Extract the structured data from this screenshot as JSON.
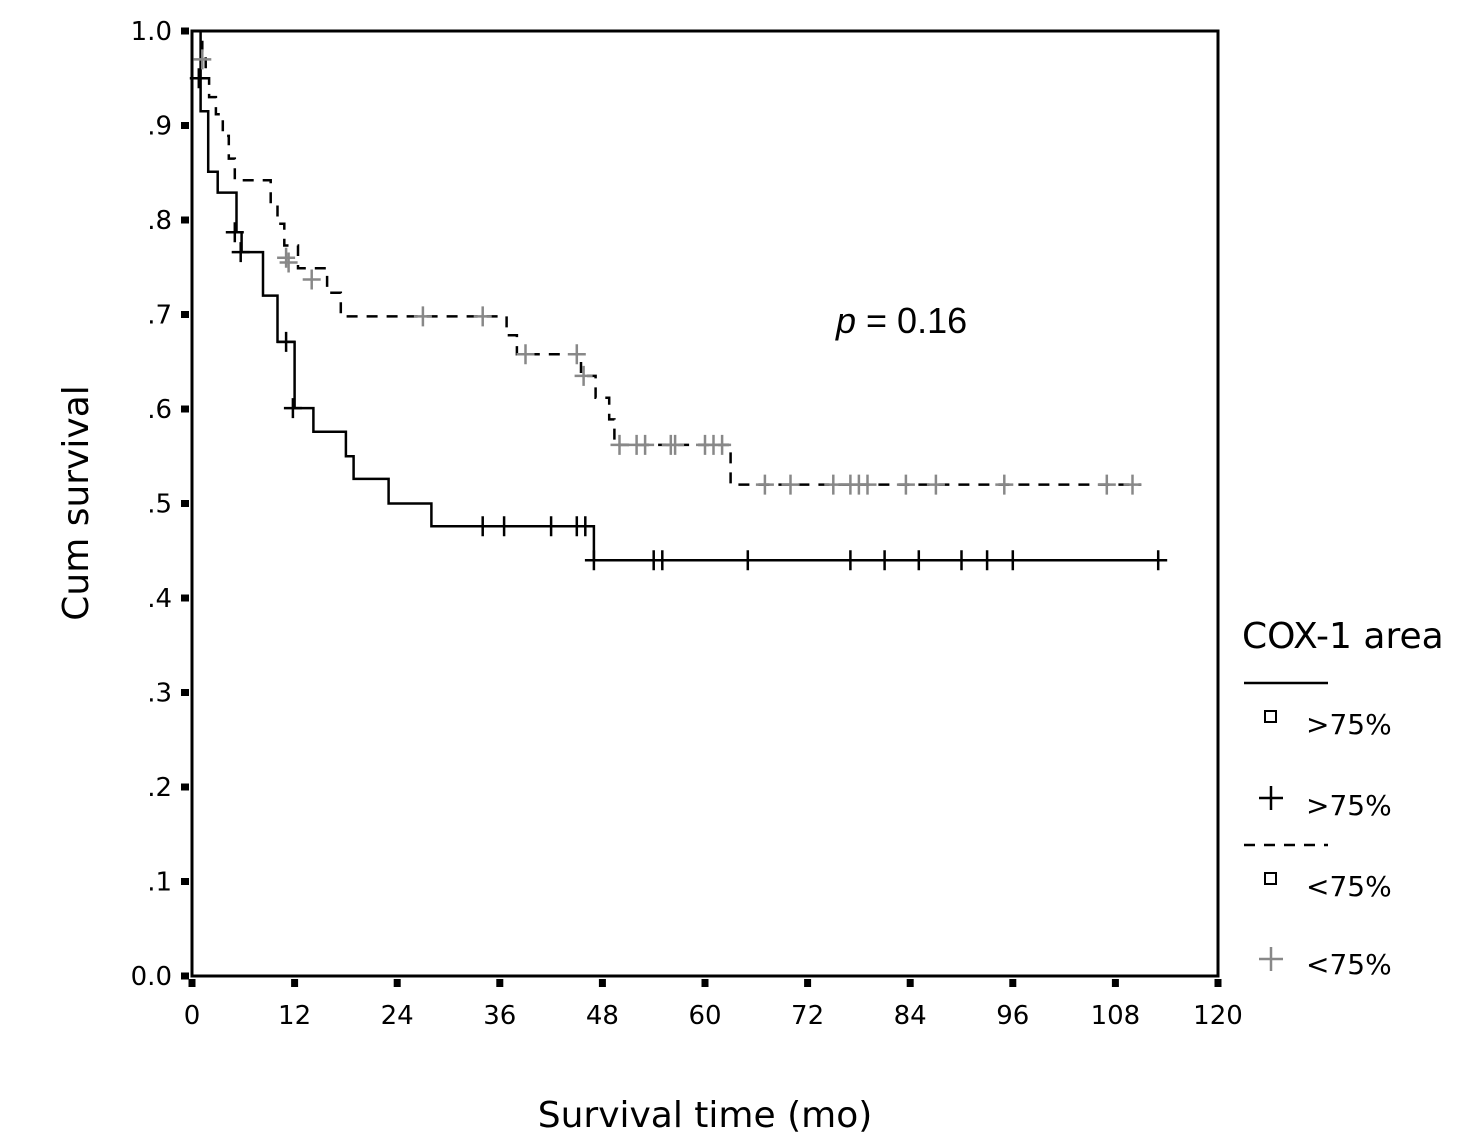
{
  "chart_data": {
    "type": "line",
    "subtype": "kaplan-meier",
    "xlabel": "Survival time (mo)",
    "ylabel": "Cum survival",
    "xlim": [
      0,
      120
    ],
    "ylim": [
      0,
      1.0
    ],
    "x_ticks": [
      0,
      12,
      24,
      36,
      48,
      60,
      72,
      84,
      96,
      108,
      120
    ],
    "x_tick_labels": [
      "0",
      "12",
      "24",
      "36",
      "48",
      "60",
      "72",
      "84",
      "96",
      "108",
      "120"
    ],
    "y_ticks": [
      0,
      0.1,
      0.2,
      0.3,
      0.4,
      0.5,
      0.6,
      0.7,
      0.8,
      0.9,
      1.0
    ],
    "y_tick_labels": [
      "0.0",
      ".1",
      ".2",
      ".3",
      ".4",
      ".5",
      ".6",
      ".7",
      ".8",
      ".9",
      "1.0"
    ],
    "grid": false,
    "annotation": {
      "prefix": "p",
      "text": " = 0.16"
    },
    "legend": {
      "title": "COX-1 area",
      "position": "right",
      "entries": [
        {
          "marker": "square",
          "label": ">75%",
          "group": ">75%"
        },
        {
          "marker": "plus",
          "label": ">75%",
          "group": ">75%"
        },
        {
          "marker": "square",
          "label": "<75%",
          "group": "<75%"
        },
        {
          "marker": "plus",
          "label": "<75%",
          "group": "<75%"
        }
      ]
    },
    "series": [
      {
        "name": ">75%",
        "style": "solid",
        "color": "#000000",
        "censor_color": "#000000",
        "steps": [
          [
            0,
            1.0
          ],
          [
            1.0,
            0.915
          ],
          [
            1.9,
            0.851
          ],
          [
            3.0,
            0.829
          ],
          [
            5.2,
            0.787
          ],
          [
            5.8,
            0.766
          ],
          [
            8.3,
            0.72
          ],
          [
            10.0,
            0.671
          ],
          [
            12.0,
            0.601
          ],
          [
            14.2,
            0.576
          ],
          [
            18.0,
            0.55
          ],
          [
            18.9,
            0.526
          ],
          [
            23.0,
            0.5
          ],
          [
            28.0,
            0.476
          ],
          [
            47.0,
            0.44
          ],
          [
            114.0,
            0.44
          ]
        ],
        "censored": [
          [
            0.8,
            0.95
          ],
          [
            5.0,
            0.787
          ],
          [
            5.7,
            0.766
          ],
          [
            11.0,
            0.671
          ],
          [
            11.8,
            0.601
          ],
          [
            34.0,
            0.476
          ],
          [
            36.5,
            0.476
          ],
          [
            42.0,
            0.476
          ],
          [
            45.0,
            0.476
          ],
          [
            46.0,
            0.476
          ],
          [
            47.0,
            0.44
          ],
          [
            54.0,
            0.44
          ],
          [
            55.0,
            0.44
          ],
          [
            65.0,
            0.44
          ],
          [
            77.0,
            0.44
          ],
          [
            81.0,
            0.44
          ],
          [
            85.0,
            0.44
          ],
          [
            90.0,
            0.44
          ],
          [
            93.0,
            0.44
          ],
          [
            96.0,
            0.44
          ],
          [
            113.0,
            0.44
          ]
        ]
      },
      {
        "name": "<75%",
        "style": "dashed",
        "color": "#000000",
        "censor_color": "#888888",
        "steps": [
          [
            0,
            1.0
          ],
          [
            1.2,
            0.977
          ],
          [
            1.6,
            0.95
          ],
          [
            2.0,
            0.93
          ],
          [
            2.8,
            0.912
          ],
          [
            3.6,
            0.889
          ],
          [
            4.3,
            0.865
          ],
          [
            5.0,
            0.842
          ],
          [
            9.2,
            0.817
          ],
          [
            10.0,
            0.796
          ],
          [
            10.8,
            0.773
          ],
          [
            12.4,
            0.749
          ],
          [
            15.8,
            0.723
          ],
          [
            17.4,
            0.698
          ],
          [
            36.8,
            0.678
          ],
          [
            38.0,
            0.658
          ],
          [
            45.5,
            0.635
          ],
          [
            47.2,
            0.612
          ],
          [
            48.8,
            0.589
          ],
          [
            49.4,
            0.562
          ],
          [
            63.0,
            0.52
          ],
          [
            111.0,
            0.52
          ]
        ],
        "censored": [
          [
            1.2,
            0.97
          ],
          [
            11.0,
            0.76
          ],
          [
            11.3,
            0.755
          ],
          [
            14.0,
            0.737
          ],
          [
            27.0,
            0.698
          ],
          [
            34.0,
            0.698
          ],
          [
            39.0,
            0.658
          ],
          [
            45.0,
            0.658
          ],
          [
            45.8,
            0.635
          ],
          [
            50.0,
            0.562
          ],
          [
            52.0,
            0.562
          ],
          [
            53.0,
            0.562
          ],
          [
            56.0,
            0.562
          ],
          [
            56.5,
            0.562
          ],
          [
            60.0,
            0.562
          ],
          [
            61.0,
            0.562
          ],
          [
            62.0,
            0.562
          ],
          [
            67.0,
            0.52
          ],
          [
            70.0,
            0.52
          ],
          [
            75.0,
            0.52
          ],
          [
            77.0,
            0.52
          ],
          [
            78.0,
            0.52
          ],
          [
            79.0,
            0.52
          ],
          [
            83.5,
            0.52
          ],
          [
            87.0,
            0.52
          ],
          [
            95.0,
            0.52
          ],
          [
            107.0,
            0.52
          ],
          [
            110.0,
            0.52
          ]
        ]
      }
    ]
  }
}
